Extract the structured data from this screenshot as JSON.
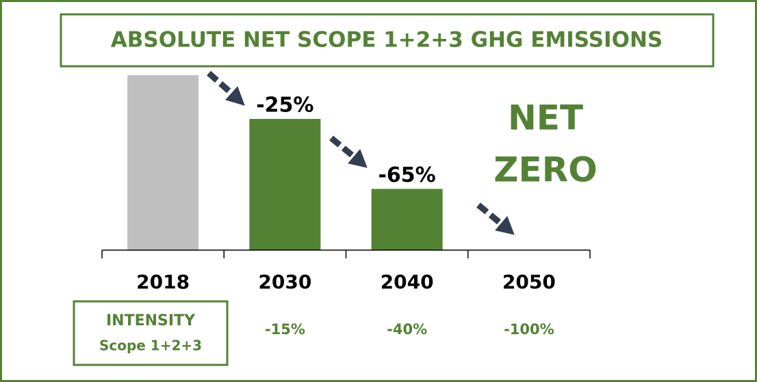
{
  "chart_data": {
    "type": "bar",
    "title": "ABSOLUTE NET SCOPE 1+2+3 GHG EMISSIONS",
    "categories": [
      "2018",
      "2030",
      "2040",
      "2050"
    ],
    "values": [
      100,
      75,
      35,
      0
    ],
    "colors": [
      "#bfbfbf",
      "#548235",
      "#548235",
      "#548235"
    ],
    "ylim": [
      0,
      100
    ],
    "annotations": [
      {
        "text": "-25%",
        "category": 1
      },
      {
        "text": "-65%",
        "category": 2
      }
    ],
    "callout": [
      "NET",
      "ZERO"
    ],
    "intensity": {
      "title": "INTENSITY",
      "subtitle": "Scope 1+2+3",
      "labels": [
        "-15%",
        "-40%",
        "-100%"
      ]
    }
  }
}
